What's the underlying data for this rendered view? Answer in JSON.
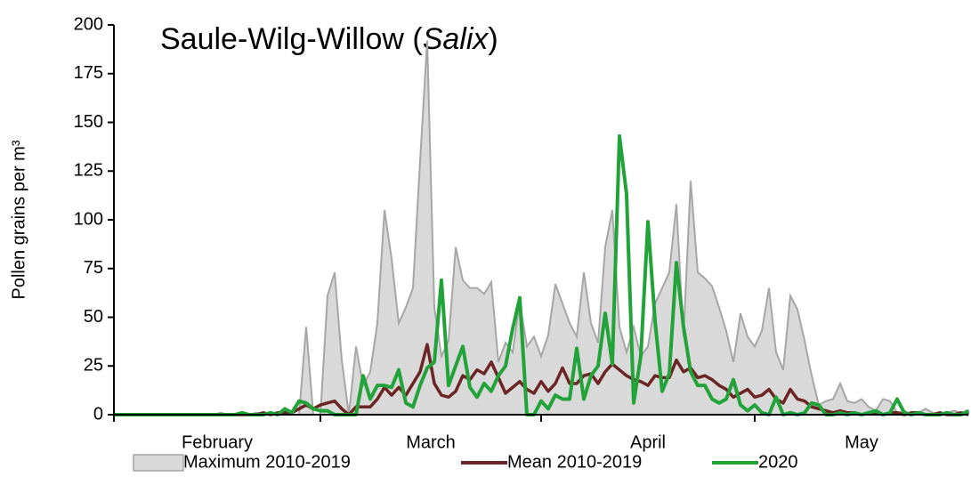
{
  "chart_data": {
    "type": "line",
    "title_parts": [
      "Saule-Wilg-Willow (",
      "Salix",
      ")"
    ],
    "y_label": "Pollen grains per m³",
    "ylim": [
      0,
      200
    ],
    "yticks": [
      0,
      25,
      50,
      75,
      100,
      125,
      150,
      175,
      200
    ],
    "categories": [
      "February",
      null,
      null,
      null,
      null,
      null,
      null,
      null,
      null,
      null,
      null,
      null,
      null,
      null,
      null,
      null,
      null,
      null,
      null,
      null,
      null,
      null,
      null,
      null,
      null,
      null,
      null,
      null,
      null,
      "March",
      null,
      null,
      null,
      null,
      null,
      null,
      null,
      null,
      null,
      null,
      null,
      null,
      null,
      null,
      null,
      null,
      null,
      null,
      null,
      null,
      null,
      null,
      null,
      null,
      null,
      null,
      null,
      null,
      null,
      null,
      "April",
      null,
      null,
      null,
      null,
      null,
      null,
      null,
      null,
      null,
      null,
      null,
      null,
      null,
      null,
      null,
      null,
      null,
      null,
      null,
      null,
      null,
      null,
      null,
      null,
      null,
      null,
      null,
      null,
      null,
      "May",
      null,
      null,
      null,
      null,
      null,
      null,
      null,
      null,
      null,
      null,
      null,
      null,
      null,
      null,
      null,
      null,
      null,
      null,
      null,
      null,
      null,
      null,
      null,
      null,
      null,
      null,
      null,
      null,
      null,
      null
    ],
    "series": [
      {
        "name": "Maximum 2010-2019",
        "kind": "area",
        "color": "#d9d9d9",
        "edge_color": "#a6a6a6",
        "values": [
          0,
          0,
          0,
          0,
          0,
          0,
          0,
          0,
          0,
          0,
          0,
          0,
          0,
          0,
          0,
          1,
          0,
          0,
          0,
          0,
          1,
          0,
          0,
          0,
          0,
          0,
          0,
          45,
          0,
          0,
          61,
          73,
          28,
          0,
          35,
          15,
          22,
          47,
          105,
          80,
          47,
          55,
          65,
          130,
          192,
          55,
          30,
          38,
          86,
          69,
          65,
          65,
          62,
          68,
          27,
          37,
          32,
          58,
          35,
          40,
          30,
          41,
          67,
          57,
          47,
          40,
          73,
          47,
          37,
          86,
          105,
          45,
          32,
          45,
          30,
          35,
          57,
          65,
          73,
          108,
          40,
          120,
          73,
          70,
          66,
          55,
          43,
          27,
          52,
          40,
          35,
          43,
          65,
          32,
          23,
          61,
          54,
          38,
          20,
          5,
          7,
          8,
          16,
          7,
          6,
          8,
          4,
          2,
          8,
          7,
          1,
          2,
          0,
          1,
          3,
          1,
          0,
          1,
          2,
          1,
          2
        ]
      },
      {
        "name": "Mean 2010-2019",
        "kind": "line",
        "color": "#6b2525",
        "values": [
          0,
          0,
          0,
          0,
          0,
          0,
          0,
          0,
          0,
          0,
          0,
          0,
          0,
          0,
          0,
          0,
          0,
          0,
          0,
          0,
          0,
          1,
          0,
          1,
          1,
          1,
          3,
          5,
          3,
          5,
          6,
          7,
          3,
          0,
          4,
          4,
          4,
          8,
          14,
          10,
          14,
          10,
          16,
          22,
          36,
          16,
          10,
          9,
          12,
          20,
          18,
          23,
          21,
          27,
          19,
          11,
          14,
          17,
          13,
          11,
          17,
          12,
          16,
          24,
          16,
          16,
          20,
          21,
          16,
          22,
          26,
          23,
          20,
          18,
          17,
          15,
          20,
          19,
          19,
          28,
          22,
          24,
          19,
          20,
          18,
          15,
          13,
          9,
          11,
          13,
          9,
          10,
          13,
          8,
          6,
          13,
          8,
          7,
          4,
          3,
          2,
          1,
          2,
          1,
          1,
          0,
          1,
          1,
          0,
          1,
          1,
          0,
          1,
          1,
          0,
          0,
          1,
          0,
          0,
          1,
          0
        ]
      },
      {
        "name": "2020",
        "kind": "line",
        "color": "#22a33a",
        "values": [
          0,
          0,
          0,
          0,
          0,
          0,
          0,
          0,
          0,
          0,
          0,
          0,
          0,
          0,
          0,
          0,
          0,
          0,
          1,
          0,
          0,
          0,
          1,
          0,
          3,
          1,
          7,
          6,
          3,
          2,
          2,
          0,
          0,
          0,
          0,
          20,
          8,
          15,
          15,
          14,
          23,
          6,
          4,
          15,
          24,
          27,
          69,
          15,
          25,
          35,
          14,
          9,
          16,
          12,
          20,
          25,
          44,
          60,
          0,
          0,
          7,
          3,
          10,
          8,
          8,
          34,
          8,
          20,
          25,
          52,
          26,
          143,
          113,
          6,
          30,
          99,
          48,
          12,
          21,
          78,
          45,
          22,
          15,
          15,
          8,
          6,
          8,
          18,
          5,
          2,
          5,
          1,
          0,
          9,
          0,
          1,
          0,
          1,
          6,
          5,
          0,
          0,
          1,
          0,
          1,
          0,
          1,
          2,
          0,
          1,
          8,
          1,
          0,
          1,
          0,
          0,
          0,
          1,
          0,
          0,
          2
        ]
      }
    ]
  }
}
